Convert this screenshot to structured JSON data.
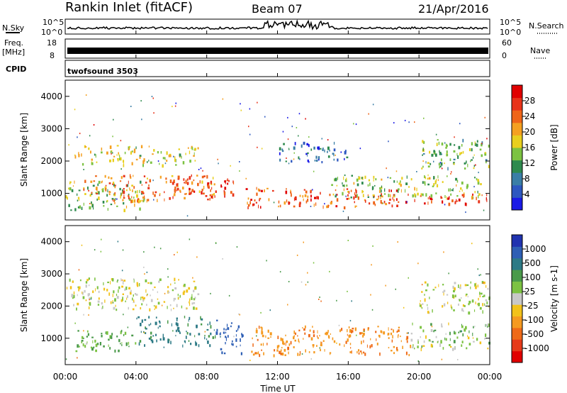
{
  "header": {
    "station": "Rankin Inlet (fitACF)",
    "beam": "Beam 07",
    "date": "21/Apr/2016"
  },
  "strips": {
    "nsky_label": "N.Sky",
    "nsearch_label": "N.Search",
    "noise_ticks": [
      "10^5",
      "10^0"
    ],
    "freq_label_line1": "Freq.",
    "freq_label_line2": "[MHz]",
    "freq_ticks": [
      "18",
      "8"
    ],
    "nave_label": "Nave",
    "nave_ticks": [
      "60",
      "0"
    ],
    "cpid_label": "CPID",
    "cpid_value": "twofsound 3503"
  },
  "x_axis": {
    "label": "Time UT",
    "ticks": [
      "00:00",
      "04:00",
      "08:00",
      "12:00",
      "16:00",
      "20:00",
      "00:00"
    ],
    "range_hours": [
      0,
      24
    ]
  },
  "y_axis": {
    "label": "Slant Range [km]",
    "ticks": [
      1000,
      2000,
      3000,
      4000
    ],
    "range_km": [
      180,
      4500
    ]
  },
  "power_scale": {
    "label": "Power [dB]",
    "ticks": [
      "4",
      "8",
      "12",
      "16",
      "20",
      "24",
      "28"
    ],
    "colors": [
      "#1a1ae6",
      "#2d57c0",
      "#3a7ea6",
      "#2e8a4e",
      "#7cc242",
      "#e8cf1e",
      "#f5a020",
      "#ef6518",
      "#e8331a",
      "#e00000"
    ]
  },
  "velocity_scale": {
    "label": "Velocity [m s-1]",
    "ticks": [
      "1000",
      "500",
      "100",
      "25",
      "-25",
      "-100",
      "-500",
      "-1000"
    ],
    "colors": [
      "#2033b0",
      "#2e5fb5",
      "#2d7a86",
      "#4a9a4a",
      "#7cc242",
      "#c8c8c8",
      "#f2c21a",
      "#f59a20",
      "#ef6a18",
      "#e63a1a",
      "#e00000"
    ]
  },
  "chart_data": {
    "type": "heatmap",
    "panels": [
      {
        "name": "Power",
        "unit": "dB",
        "echo_regions": [
          {
            "t_start": 0.0,
            "t_end": 4.5,
            "range_km": [
              500,
              1400
            ],
            "level": 14
          },
          {
            "t_start": 1.0,
            "t_end": 8.5,
            "range_km": [
              800,
              1600
            ],
            "level": 22
          },
          {
            "t_start": 6.0,
            "t_end": 9.5,
            "range_km": [
              900,
              1500
            ],
            "level": 26
          },
          {
            "t_start": 0.5,
            "t_end": 7.5,
            "range_km": [
              1900,
              2500
            ],
            "level": 16
          },
          {
            "t_start": 10.0,
            "t_end": 19.0,
            "range_km": [
              600,
              1200
            ],
            "level": 24
          },
          {
            "t_start": 15.0,
            "t_end": 23.5,
            "range_km": [
              900,
              1600
            ],
            "level": 14
          },
          {
            "t_start": 19.0,
            "t_end": 24.0,
            "range_km": [
              700,
              1000
            ],
            "level": 26
          },
          {
            "t_start": 20.0,
            "t_end": 24.0,
            "range_km": [
              1800,
              2700
            ],
            "level": 12
          },
          {
            "t_start": 12.0,
            "t_end": 16.0,
            "range_km": [
              2000,
              2600
            ],
            "level": 6
          }
        ]
      },
      {
        "name": "Velocity",
        "unit": "m s-1",
        "echo_regions": [
          {
            "t_start": 0.0,
            "t_end": 7.5,
            "range_km": [
              1900,
              2900
            ],
            "level": 0
          },
          {
            "t_start": 0.5,
            "t_end": 4.0,
            "range_km": [
              600,
              1300
            ],
            "level": 100
          },
          {
            "t_start": 4.0,
            "t_end": 8.5,
            "range_km": [
              800,
              1700
            ],
            "level": 300
          },
          {
            "t_start": 8.5,
            "t_end": 10.0,
            "range_km": [
              500,
              1600
            ],
            "level": 800
          },
          {
            "t_start": 10.5,
            "t_end": 19.5,
            "range_km": [
              500,
              1400
            ],
            "level": -200
          },
          {
            "t_start": 19.5,
            "t_end": 24.0,
            "range_km": [
              700,
              1500
            ],
            "level": 50
          },
          {
            "t_start": 20.0,
            "t_end": 24.0,
            "range_km": [
              1800,
              2800
            ],
            "level": 0
          }
        ]
      }
    ]
  }
}
